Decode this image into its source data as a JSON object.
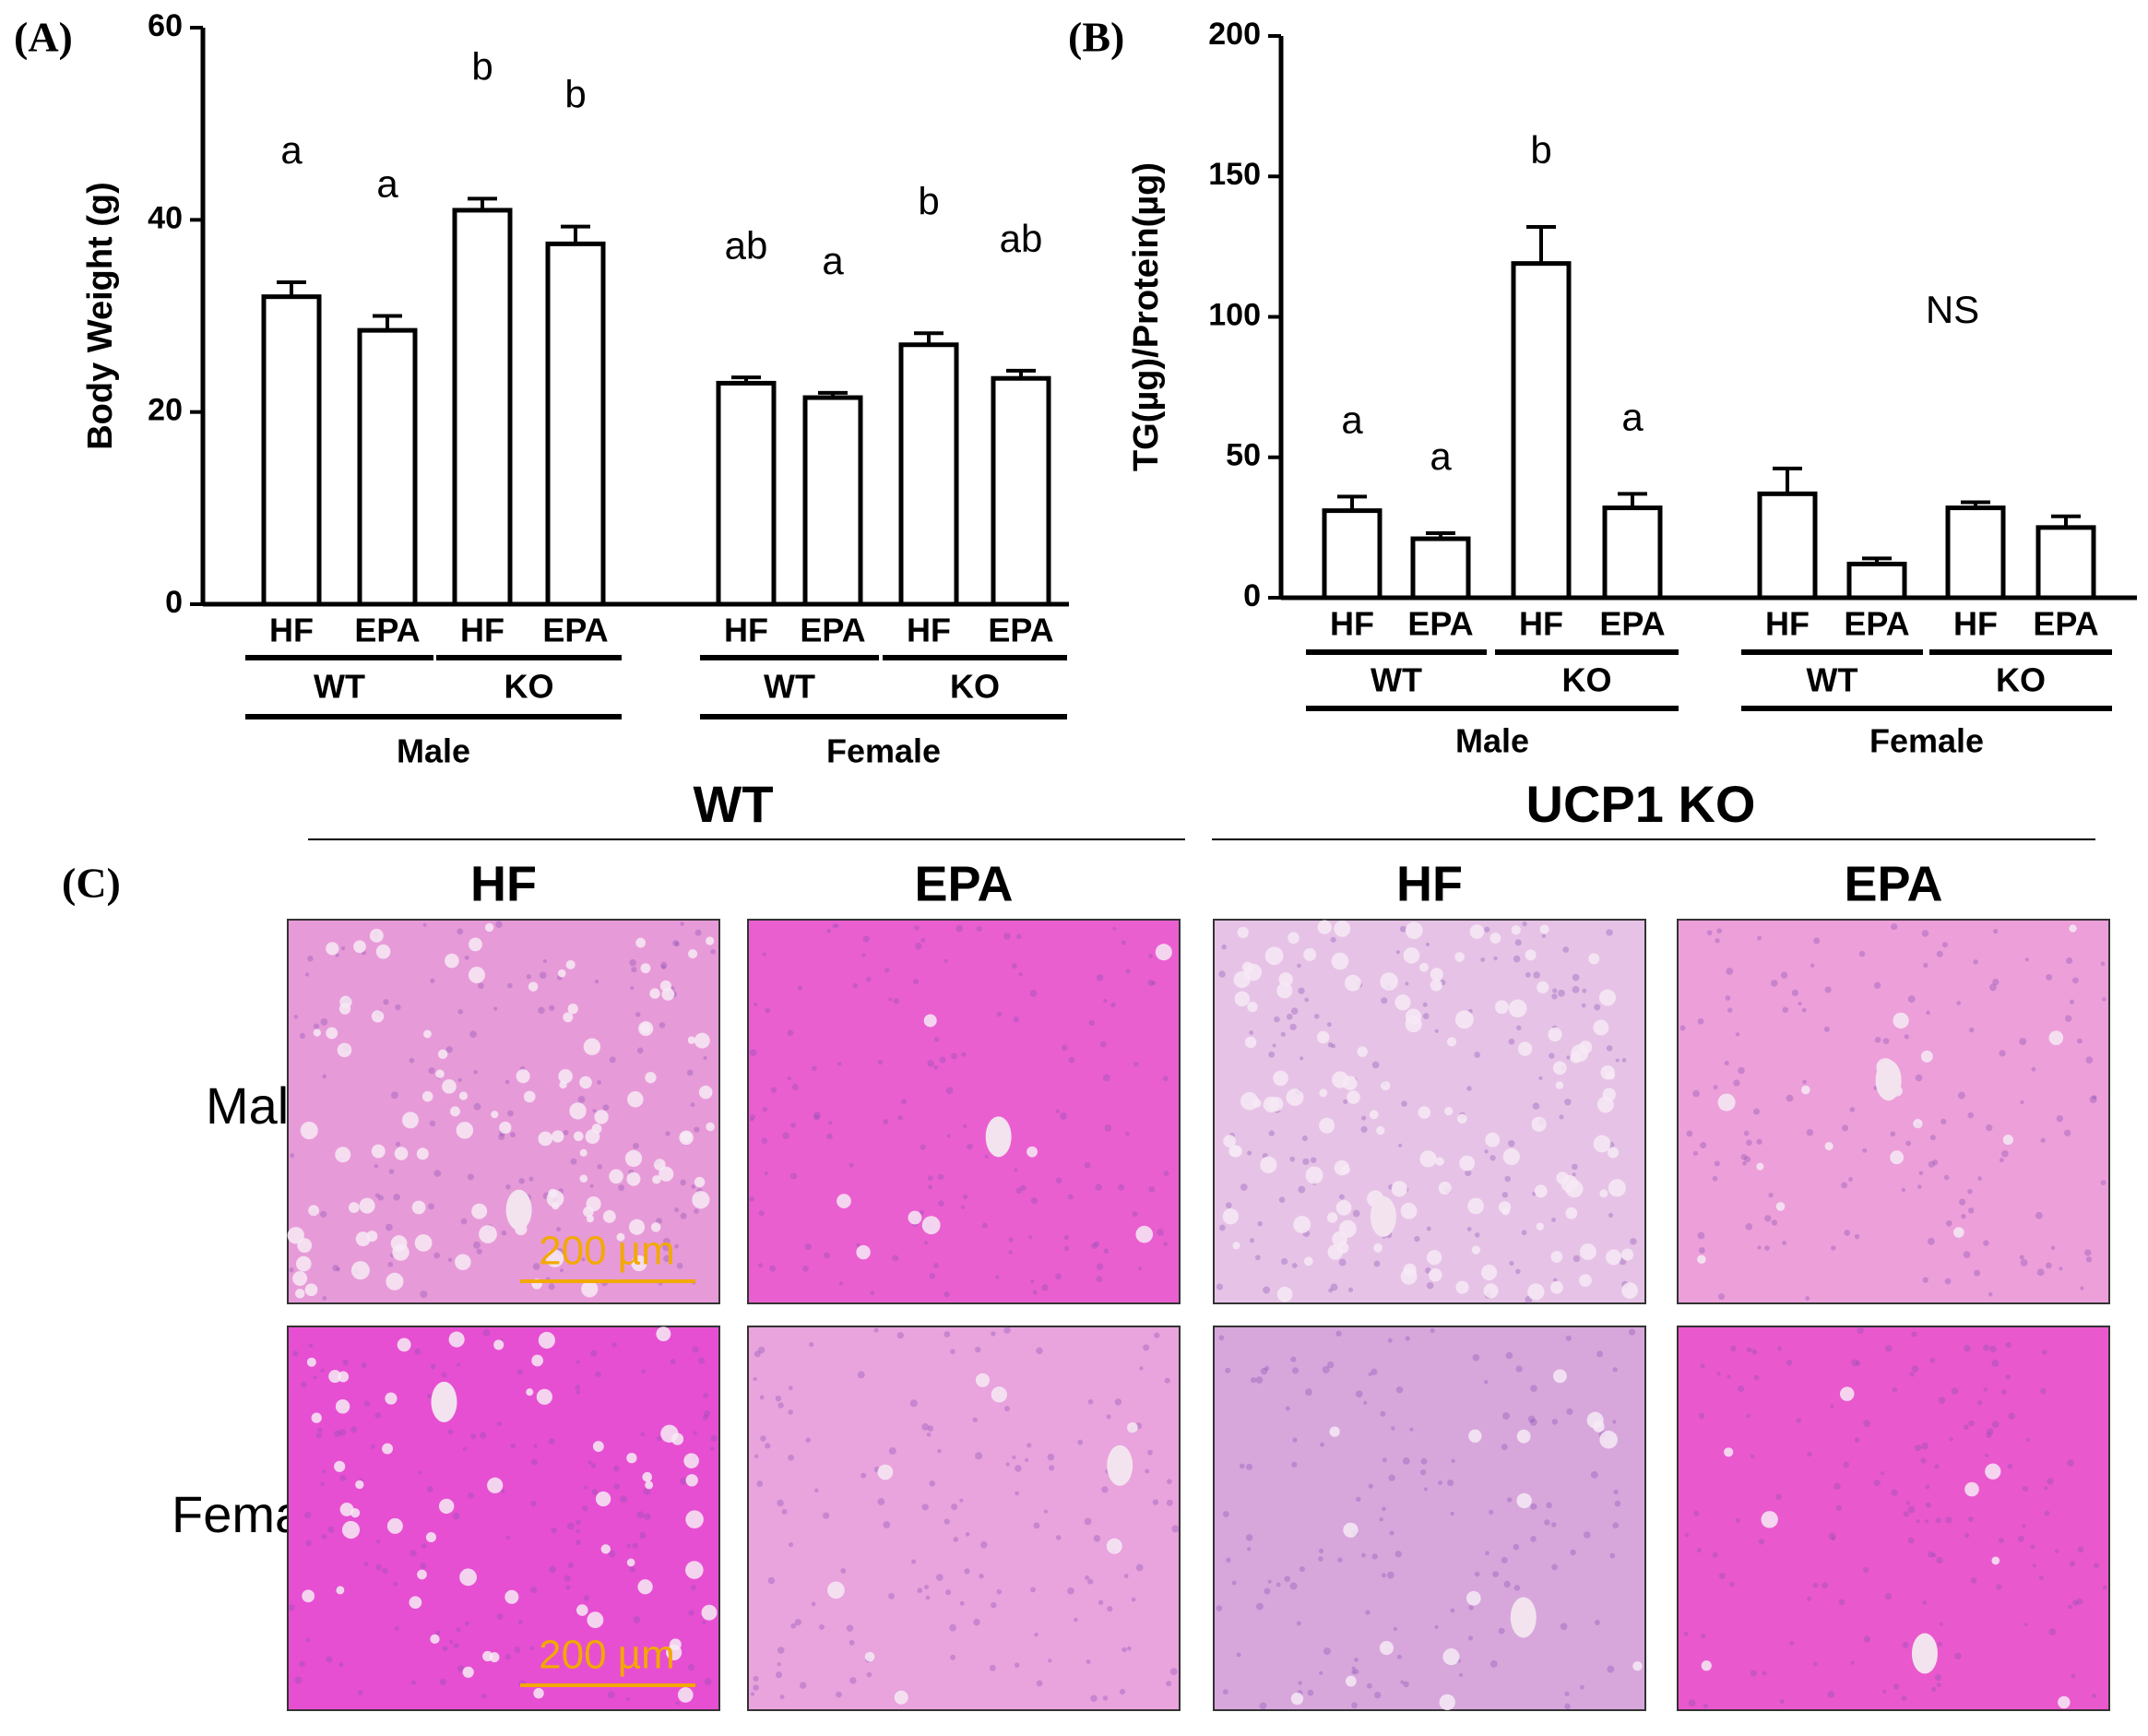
{
  "chart_data": [
    {
      "type": "bar",
      "panel_label": "(A)",
      "y_label": "Body Weight (g)",
      "categories": [
        "HF",
        "EPA",
        "HF",
        "EPA",
        "HF",
        "EPA",
        "HF",
        "EPA"
      ],
      "groups": [
        "WT",
        "KO",
        "WT",
        "KO"
      ],
      "sexes": [
        "Male",
        "Female"
      ],
      "values": [
        32,
        28.5,
        41,
        37.5,
        23,
        21.5,
        27,
        23.5
      ],
      "errors": [
        1.5,
        1.5,
        1.2,
        1.8,
        0.6,
        0.5,
        1.2,
        0.8
      ],
      "letters": [
        "a",
        "a",
        "b",
        "b",
        "ab",
        "a",
        "b",
        "ab"
      ],
      "color": "#ffffff",
      "ylim": [
        0,
        60
      ],
      "yticks": [
        0,
        20,
        40,
        60
      ]
    },
    {
      "type": "bar",
      "panel_label": "(B)",
      "y_label": "TG(µg)/Protein(µg)",
      "categories": [
        "HF",
        "EPA",
        "HF",
        "EPA",
        "HF",
        "EPA",
        "HF",
        "EPA"
      ],
      "groups": [
        "WT",
        "KO",
        "WT",
        "KO"
      ],
      "sexes": [
        "Male",
        "Female"
      ],
      "values": [
        31,
        21,
        119,
        32,
        37,
        12,
        32,
        25
      ],
      "errors": [
        5,
        2,
        13,
        5,
        9,
        2,
        2,
        4
      ],
      "letters": [
        "a",
        "a",
        "b",
        "a",
        null,
        null,
        null,
        null
      ],
      "annotation": "NS",
      "color": "#ffffff",
      "ylim": [
        0,
        200
      ],
      "yticks": [
        0,
        50,
        100,
        150,
        200
      ]
    }
  ],
  "figure_c": {
    "panel_label": "(C)",
    "genotypes": [
      "WT",
      "UCP1 KO"
    ],
    "diets": [
      "HF",
      "EPA",
      "HF",
      "EPA"
    ],
    "rows": [
      "Male",
      "Female"
    ],
    "scale_bars": [
      "200 µm",
      "200 µm"
    ]
  }
}
